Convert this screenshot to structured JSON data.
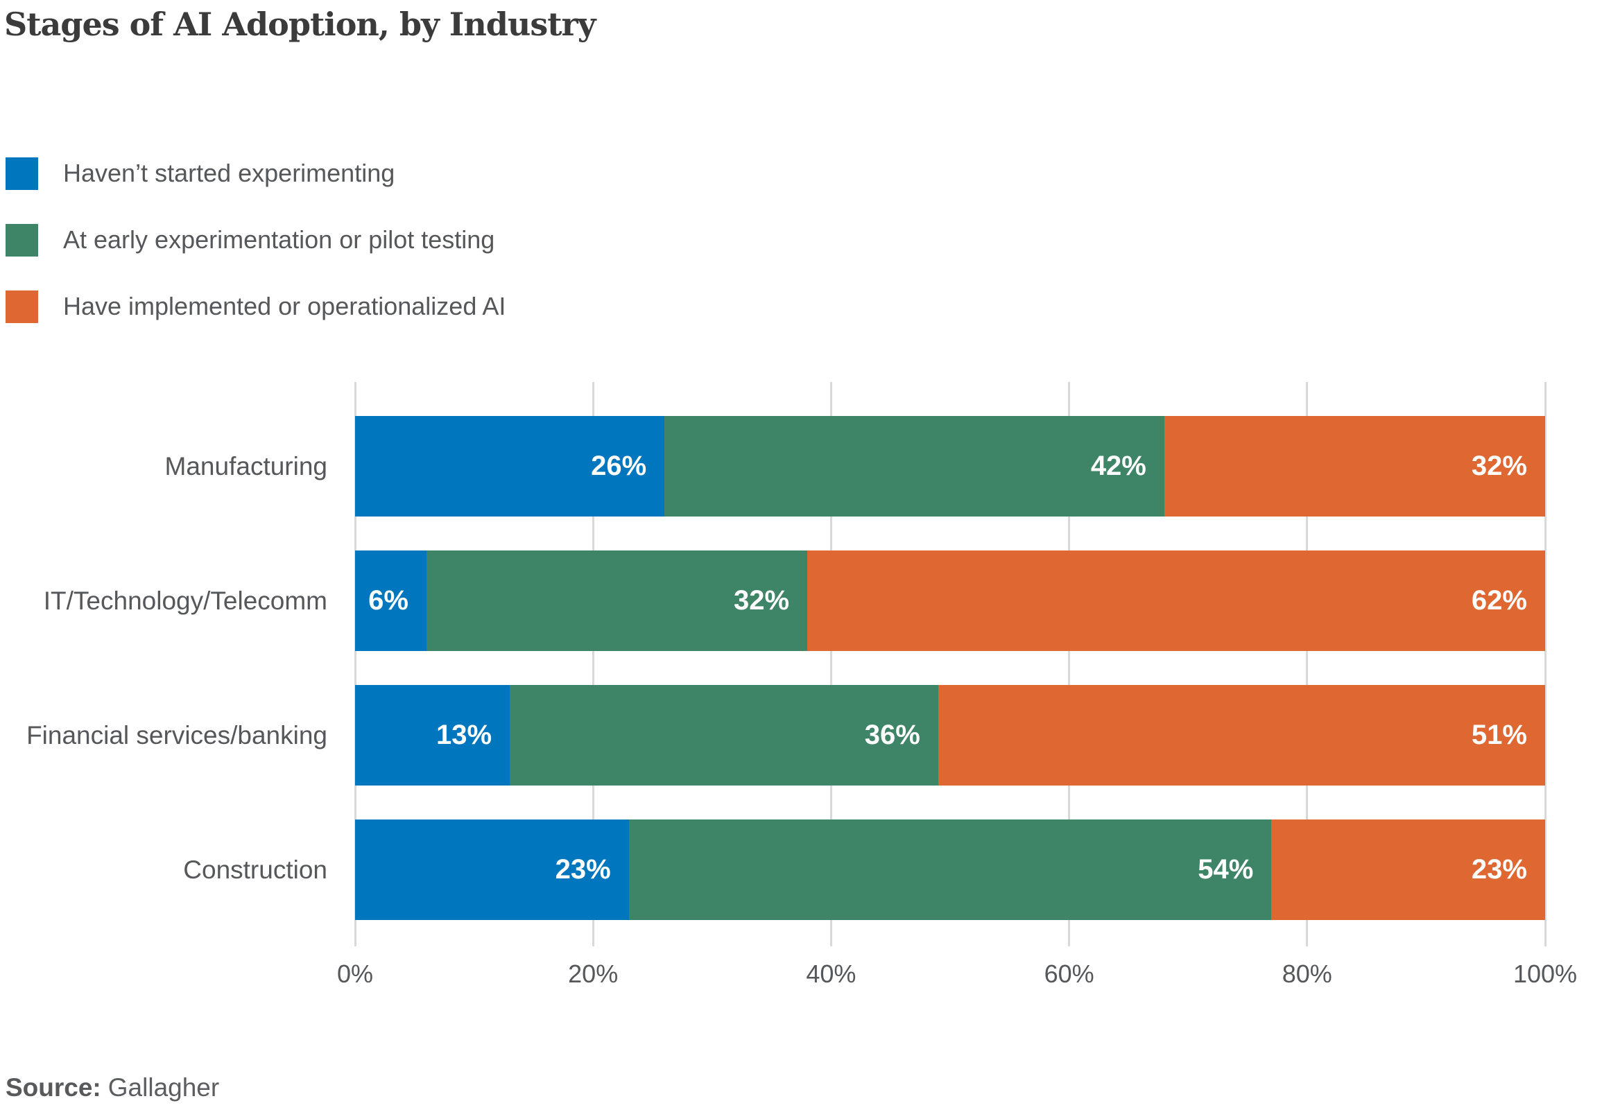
{
  "title": "Stages of AI Adoption, by Industry",
  "source": {
    "label": "Source:",
    "value": "Gallagher"
  },
  "chart_data": {
    "type": "bar",
    "stacked": true,
    "orientation": "horizontal",
    "title": "Stages of AI Adoption, by Industry",
    "categories": [
      "Manufacturing",
      "IT/Technology/Telecomm",
      "Financial services/banking",
      "Construction"
    ],
    "series": [
      {
        "name": "Haven’t started experimenting",
        "color": "#0076be",
        "values": [
          26,
          6,
          13,
          23
        ]
      },
      {
        "name": "At early experimentation or pilot testing",
        "color": "#3e8466",
        "values": [
          42,
          32,
          36,
          54
        ]
      },
      {
        "name": "Have implemented or operationalized AI",
        "color": "#df6731",
        "values": [
          32,
          62,
          51,
          23
        ]
      }
    ],
    "x_ticks": [
      {
        "label": "0%",
        "value": 0
      },
      {
        "label": "20%",
        "value": 20
      },
      {
        "label": "40%",
        "value": 40
      },
      {
        "label": "60%",
        "value": 60
      },
      {
        "label": "80%",
        "value": 80
      },
      {
        "label": "100%",
        "value": 100
      }
    ],
    "xlim": [
      0,
      100
    ],
    "value_suffix": "%",
    "value_label_color": "#ffffff",
    "grid": "vertical",
    "legend_position": "top-left"
  }
}
